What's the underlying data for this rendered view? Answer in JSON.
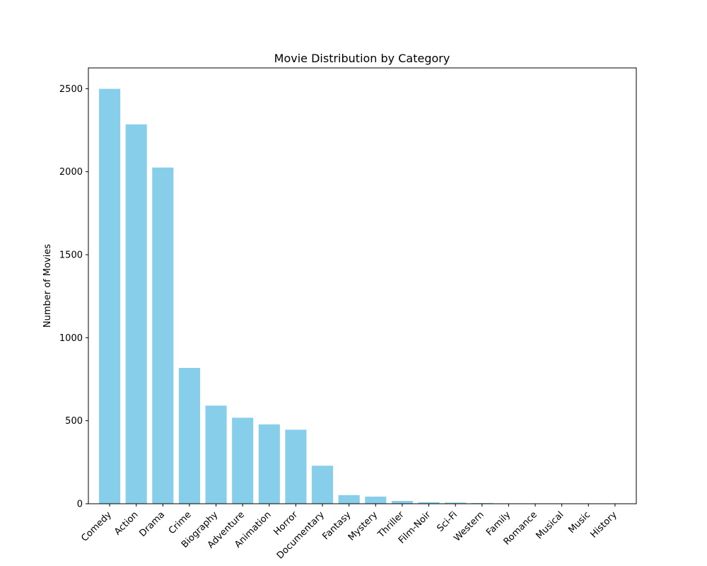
{
  "chart_data": {
    "type": "bar",
    "title": "Movie Distribution by Category",
    "xlabel": "",
    "ylabel": "Number of Movies",
    "categories": [
      "Comedy",
      "Action",
      "Drama",
      "Crime",
      "Biography",
      "Adventure",
      "Animation",
      "Horror",
      "Documentary",
      "Fantasy",
      "Mystery",
      "Thriller",
      "Film-Noir",
      "Sci-Fi",
      "Western",
      "Family",
      "Romance",
      "Musical",
      "Music",
      "History"
    ],
    "values": [
      2499,
      2285,
      2025,
      818,
      591,
      518,
      478,
      446,
      229,
      52,
      43,
      17,
      9,
      7,
      4,
      2,
      2,
      2,
      1,
      1
    ],
    "ylim": [
      0,
      2625
    ],
    "yticks": [
      0,
      500,
      1000,
      1500,
      2000,
      2500
    ],
    "grid": false,
    "bar_color": "#87ceeb"
  }
}
